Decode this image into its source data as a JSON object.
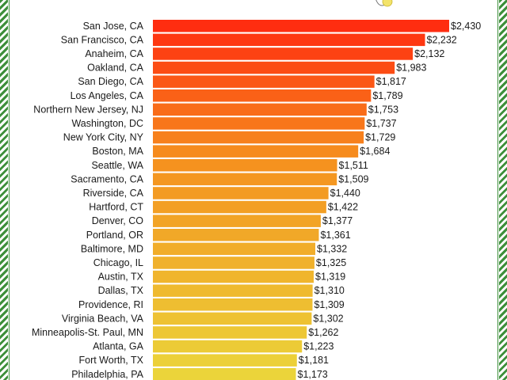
{
  "chart_data": {
    "type": "bar",
    "orientation": "horizontal",
    "title": "",
    "xlabel": "",
    "ylabel": "",
    "value_format": "$ with thousands separator",
    "categories": [
      "San Jose, CA",
      "San Francisco, CA",
      "Anaheim, CA",
      "Oakland, CA",
      "San Diego, CA",
      "Los Angeles, CA",
      "Northern New Jersey, NJ",
      "Washington, DC",
      "New York City, NY",
      "Boston, MA",
      "Seattle, WA",
      "Sacramento, CA",
      "Riverside, CA",
      "Hartford, CT",
      "Denver, CO",
      "Portland, OR",
      "Baltimore, MD",
      "Chicago, IL",
      "Austin, TX",
      "Dallas, TX",
      "Providence, RI",
      "Virginia Beach, VA",
      "Minneapolis-St. Paul, MN",
      "Atlanta, GA",
      "Fort Worth, TX",
      "Philadelphia, PA"
    ],
    "values": [
      2430,
      2232,
      2132,
      1983,
      1817,
      1789,
      1753,
      1737,
      1729,
      1684,
      1511,
      1509,
      1440,
      1422,
      1377,
      1361,
      1332,
      1325,
      1319,
      1310,
      1309,
      1302,
      1262,
      1223,
      1181,
      1173
    ],
    "value_labels": [
      "$2,430",
      "$2,232",
      "$2,132",
      "$1,983",
      "$1,817",
      "$1,789",
      "$1,753",
      "$1,737",
      "$1,729",
      "$1,684",
      "$1,511",
      "$1,509",
      "$1,440",
      "$1,422",
      "$1,377",
      "$1,361",
      "$1,332",
      "$1,325",
      "$1,319",
      "$1,310",
      "$1,309",
      "$1,302",
      "$1,262",
      "$1,223",
      "$1,181",
      "$1,173"
    ],
    "xlim": [
      0,
      2430
    ],
    "colors": {
      "gradient_top": "#ff2d10",
      "gradient_mid": "#f5901e",
      "gradient_bottom": "#ebd43a",
      "border_stripe": "#3d8f3a"
    },
    "grid": false,
    "legend": "none"
  }
}
